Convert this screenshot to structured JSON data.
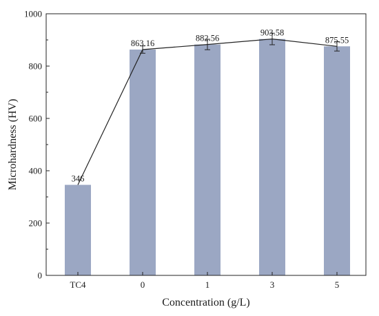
{
  "chart_data": {
    "type": "bar",
    "categories": [
      "TC4",
      "0",
      "1",
      "3",
      "5"
    ],
    "values": [
      346,
      863.16,
      882.56,
      903.58,
      875.55
    ],
    "value_labels": [
      "346",
      "863.16",
      "882.56",
      "903.58",
      "875.55"
    ],
    "errors": [
      0,
      14,
      20,
      22,
      18
    ],
    "title": "",
    "xlabel": "Concentration (g/L)",
    "ylabel": "Microhardness (HV)",
    "ylim": [
      0,
      1000
    ],
    "yticks": [
      0,
      200,
      400,
      600,
      800,
      1000
    ],
    "line_overlay": true,
    "grid": false,
    "colors": {
      "bar": "#9ba7c3",
      "line": "#222222",
      "axis": "#222222"
    }
  }
}
